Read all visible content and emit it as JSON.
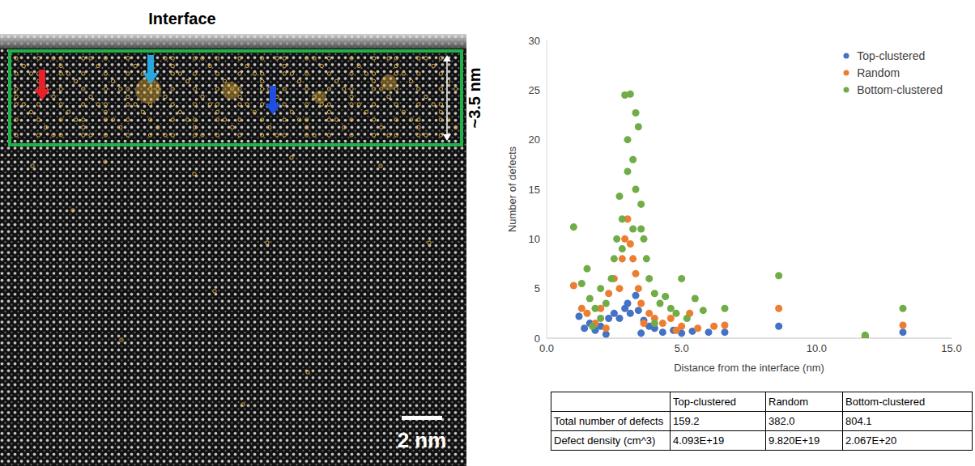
{
  "image": {
    "title": "Interface",
    "thickness_label": "~3.5 nm",
    "scale_bar": "2 nm"
  },
  "chart_data": {
    "type": "scatter",
    "x_label": "Distance from the interface (nm)",
    "y_label": "Number of defects",
    "xlim": [
      0,
      15
    ],
    "xticks": [
      {
        "value": 0,
        "label": "0.0"
      },
      {
        "value": 5,
        "label": "5.0"
      },
      {
        "value": 10,
        "label": "10.0"
      },
      {
        "value": 15,
        "label": "15.0"
      }
    ],
    "ylim": [
      0,
      30
    ],
    "yticks": [
      0,
      5,
      10,
      15,
      20,
      25,
      30
    ],
    "grid": false,
    "legend": "upper right",
    "series": [
      {
        "name": "Top-clustered",
        "color": "#4472c4",
        "marker": "circle",
        "x": [
          1.2,
          1.4,
          1.6,
          1.8,
          2.0,
          2.3,
          2.5,
          2.7,
          2.9,
          3.0,
          3.1,
          3.3,
          3.4,
          3.6,
          3.8,
          4.0,
          4.3,
          4.7,
          5.0,
          5.4,
          6.0,
          6.6,
          8.6,
          11.8,
          13.2,
          2.2,
          3.5
        ],
        "values": [
          2.2,
          1.0,
          1.5,
          0.8,
          1.2,
          2.0,
          2.5,
          2.0,
          3.0,
          3.5,
          2.5,
          4.3,
          2.8,
          1.8,
          1.2,
          1.0,
          0.6,
          0.8,
          0.5,
          0.7,
          0.6,
          0.6,
          1.2,
          0.1,
          0.6,
          0.4,
          0.5
        ]
      },
      {
        "name": "Random",
        "color": "#ed7d31",
        "marker": "circle",
        "x": [
          1.0,
          1.3,
          1.5,
          1.8,
          2.0,
          2.3,
          2.5,
          2.7,
          2.8,
          2.9,
          3.0,
          3.1,
          3.2,
          3.3,
          3.4,
          3.5,
          3.8,
          4.0,
          4.3,
          4.6,
          5.0,
          5.3,
          5.6,
          6.2,
          6.6,
          8.6,
          11.8,
          13.2,
          2.2,
          3.6,
          4.8
        ],
        "values": [
          5.3,
          3.0,
          2.5,
          1.5,
          3.0,
          4.5,
          6.0,
          5.0,
          8.0,
          10.0,
          12.0,
          9.5,
          8.0,
          6.5,
          5.0,
          3.5,
          2.5,
          2.0,
          1.5,
          2.0,
          1.2,
          2.5,
          1.0,
          1.2,
          1.3,
          3.0,
          0.2,
          1.3,
          1.0,
          1.5,
          0.8
        ]
      },
      {
        "name": "Bottom-clustered",
        "color": "#70ad47",
        "marker": "circle",
        "x": [
          1.0,
          1.3,
          1.5,
          1.6,
          1.8,
          2.0,
          2.2,
          2.4,
          2.5,
          2.6,
          2.7,
          2.8,
          2.9,
          3.0,
          3.0,
          3.1,
          3.2,
          3.3,
          3.3,
          3.4,
          3.5,
          3.5,
          3.6,
          3.7,
          3.8,
          4.0,
          4.2,
          4.4,
          4.6,
          4.8,
          5.0,
          5.2,
          5.5,
          5.8,
          6.6,
          8.6,
          11.8,
          13.2,
          2.0,
          2.8,
          3.2,
          4.0,
          1.7
        ],
        "values": [
          11.2,
          5.5,
          7.0,
          4.0,
          3.0,
          5.0,
          3.5,
          6.0,
          8.0,
          10.0,
          14.3,
          12.0,
          24.5,
          16.8,
          20.0,
          24.6,
          18.0,
          22.7,
          15.0,
          21.3,
          13.5,
          11.0,
          10.0,
          8.0,
          6.0,
          4.5,
          3.5,
          4.2,
          3.0,
          2.5,
          6.0,
          2.0,
          4.0,
          2.8,
          3.0,
          6.3,
          0.3,
          3.0,
          2.0,
          9.0,
          11.0,
          1.5,
          1.2
        ]
      }
    ]
  },
  "table": {
    "columns": [
      "Top-clustered",
      "Random",
      "Bottom-clustered"
    ],
    "rows": [
      {
        "label": "Total number of defects",
        "cells": [
          "159.2",
          "382.0",
          "804.1"
        ]
      },
      {
        "label": "Defect density (cm^3)",
        "cells": [
          "4.093E+19",
          "9.820E+19",
          "2.067E+20"
        ]
      }
    ]
  }
}
